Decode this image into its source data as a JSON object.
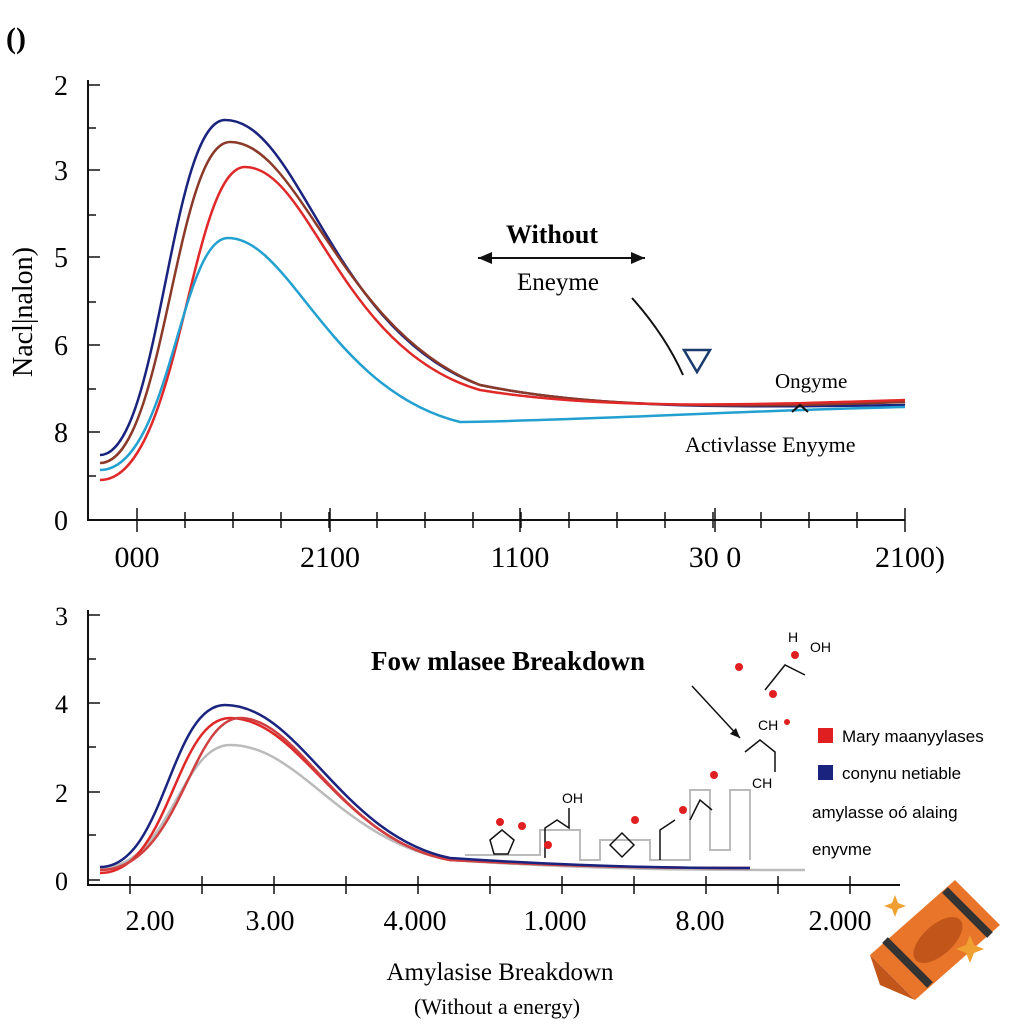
{
  "panel_label": "()",
  "top": {
    "y_label": "Nacl|nalon)",
    "y_ticks": [
      "2",
      "3",
      "5",
      "6",
      "8",
      "0"
    ],
    "x_ticks": [
      "000",
      "2100",
      "1100",
      "30 0",
      "2100)"
    ],
    "annotations": [
      "Without",
      "Eneyme",
      "Ongyme",
      "Activlasse Enyyme"
    ]
  },
  "bottom": {
    "title": "Fow mlasee Breakdown",
    "y_ticks": [
      "3",
      "4",
      "2",
      "0"
    ],
    "x_ticks": [
      "2.00",
      "3.00",
      "4.000",
      "1.000",
      "8.00",
      "2.000"
    ],
    "legend": [
      {
        "label": "Mary maanyylases",
        "color": "#e02020"
      },
      {
        "label": "conynu netiable",
        "color": "#1a237e"
      }
    ],
    "legend_note": [
      "amylasse oó alaing",
      "enyvme"
    ],
    "chem_labels": [
      "OH",
      "OH",
      "CH",
      "CH",
      "H"
    ],
    "x_label": "Amylasise Breakdown",
    "x_sublabel": "(Without a energy)"
  }
}
